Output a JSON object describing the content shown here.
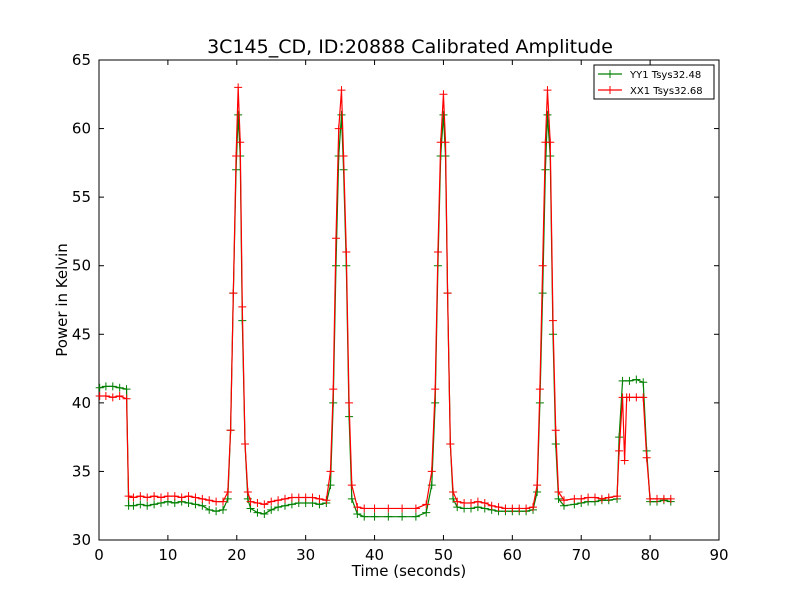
{
  "chart_data": {
    "type": "line",
    "title": "3C145_CD, ID:20888 Calibrated Amplitude",
    "xlabel": "Time (seconds)",
    "ylabel": "Power in Kelvin",
    "xlim": [
      0,
      90
    ],
    "ylim": [
      30,
      65
    ],
    "xticks": [
      0,
      10,
      20,
      30,
      40,
      50,
      60,
      70,
      80,
      90
    ],
    "yticks": [
      30,
      35,
      40,
      45,
      50,
      55,
      60,
      65
    ],
    "grid": false,
    "legend_position": "top-right",
    "series": [
      {
        "name": "YY1 Tsys32.48",
        "color": "#008000",
        "marker": "plus",
        "points": [
          [
            0.1,
            41.1
          ],
          [
            1,
            41.2
          ],
          [
            2,
            41.2
          ],
          [
            3,
            41.1
          ],
          [
            4.0,
            41.0
          ],
          [
            4.3,
            32.5
          ],
          [
            5,
            32.5
          ],
          [
            6,
            32.6
          ],
          [
            7,
            32.5
          ],
          [
            8,
            32.6
          ],
          [
            9,
            32.7
          ],
          [
            10,
            32.8
          ],
          [
            11,
            32.7
          ],
          [
            12,
            32.8
          ],
          [
            13,
            32.7
          ],
          [
            14,
            32.6
          ],
          [
            15,
            32.5
          ],
          [
            16,
            32.2
          ],
          [
            17,
            32.1
          ],
          [
            18,
            32.2
          ],
          [
            18.7,
            33.0
          ],
          [
            19.1,
            38.0
          ],
          [
            19.5,
            48.0
          ],
          [
            19.9,
            57.0
          ],
          [
            20.2,
            61.0
          ],
          [
            20.5,
            58.0
          ],
          [
            20.8,
            46.0
          ],
          [
            21.2,
            37.0
          ],
          [
            21.6,
            33.0
          ],
          [
            22,
            32.3
          ],
          [
            23,
            32.0
          ],
          [
            24,
            31.9
          ],
          [
            25,
            32.2
          ],
          [
            26,
            32.4
          ],
          [
            27,
            32.5
          ],
          [
            28,
            32.6
          ],
          [
            29,
            32.7
          ],
          [
            30,
            32.7
          ],
          [
            31,
            32.7
          ],
          [
            32,
            32.6
          ],
          [
            33,
            32.7
          ],
          [
            33.6,
            34.0
          ],
          [
            34.0,
            40.0
          ],
          [
            34.4,
            50.0
          ],
          [
            34.8,
            58.0
          ],
          [
            35.2,
            61.0
          ],
          [
            35.5,
            57.0
          ],
          [
            35.9,
            50.0
          ],
          [
            36.3,
            39.0
          ],
          [
            36.7,
            33.0
          ],
          [
            37.5,
            31.9
          ],
          [
            38.5,
            31.7
          ],
          [
            40,
            31.7
          ],
          [
            42,
            31.7
          ],
          [
            44,
            31.7
          ],
          [
            46,
            31.7
          ],
          [
            47.5,
            32.0
          ],
          [
            48.3,
            34.0
          ],
          [
            48.8,
            40.0
          ],
          [
            49.2,
            50.0
          ],
          [
            49.6,
            58.0
          ],
          [
            50.0,
            61.0
          ],
          [
            50.3,
            58.0
          ],
          [
            50.6,
            48.0
          ],
          [
            51.0,
            37.0
          ],
          [
            51.4,
            33.0
          ],
          [
            52,
            32.4
          ],
          [
            53,
            32.3
          ],
          [
            54,
            32.3
          ],
          [
            55,
            32.4
          ],
          [
            56,
            32.3
          ],
          [
            57,
            32.2
          ],
          [
            58,
            32.1
          ],
          [
            59,
            32.1
          ],
          [
            60,
            32.1
          ],
          [
            61,
            32.1
          ],
          [
            62,
            32.1
          ],
          [
            63,
            32.2
          ],
          [
            63.6,
            33.5
          ],
          [
            64.0,
            40.0
          ],
          [
            64.4,
            48.0
          ],
          [
            64.8,
            57.0
          ],
          [
            65.1,
            61.0
          ],
          [
            65.5,
            58.0
          ],
          [
            65.9,
            45.0
          ],
          [
            66.3,
            37.0
          ],
          [
            66.7,
            33.0
          ],
          [
            67.5,
            32.5
          ],
          [
            69,
            32.6
          ],
          [
            70,
            32.7
          ],
          [
            71,
            32.8
          ],
          [
            72,
            32.8
          ],
          [
            73,
            32.9
          ],
          [
            74,
            32.9
          ],
          [
            75.2,
            33.0
          ],
          [
            75.5,
            37.5
          ],
          [
            76.0,
            41.6
          ],
          [
            77,
            41.6
          ],
          [
            78,
            41.7
          ],
          [
            79,
            41.5
          ],
          [
            79.5,
            36.5
          ],
          [
            80.0,
            32.8
          ],
          [
            81,
            32.8
          ],
          [
            82,
            32.9
          ],
          [
            83,
            32.8
          ]
        ]
      },
      {
        "name": "XX1 Tsys32.68",
        "color": "#ff0000",
        "marker": "plus",
        "points": [
          [
            0.1,
            40.5
          ],
          [
            1,
            40.5
          ],
          [
            2,
            40.4
          ],
          [
            3,
            40.5
          ],
          [
            4.0,
            40.3
          ],
          [
            4.3,
            33.2
          ],
          [
            5,
            33.1
          ],
          [
            6,
            33.2
          ],
          [
            7,
            33.1
          ],
          [
            8,
            33.2
          ],
          [
            9,
            33.1
          ],
          [
            10,
            33.2
          ],
          [
            11,
            33.2
          ],
          [
            12,
            33.1
          ],
          [
            13,
            33.2
          ],
          [
            14,
            33.1
          ],
          [
            15,
            33.0
          ],
          [
            16,
            32.9
          ],
          [
            17,
            32.8
          ],
          [
            18,
            32.8
          ],
          [
            18.7,
            33.5
          ],
          [
            19.1,
            38.0
          ],
          [
            19.5,
            48.0
          ],
          [
            19.9,
            58.0
          ],
          [
            20.2,
            63.0
          ],
          [
            20.5,
            59.0
          ],
          [
            20.8,
            47.0
          ],
          [
            21.2,
            37.0
          ],
          [
            21.6,
            33.5
          ],
          [
            22,
            32.8
          ],
          [
            23,
            32.7
          ],
          [
            24,
            32.6
          ],
          [
            25,
            32.8
          ],
          [
            26,
            32.9
          ],
          [
            27,
            33.0
          ],
          [
            28,
            33.1
          ],
          [
            29,
            33.1
          ],
          [
            30,
            33.1
          ],
          [
            31,
            33.1
          ],
          [
            32,
            33.0
          ],
          [
            33,
            32.9
          ],
          [
            33.6,
            35.0
          ],
          [
            34.0,
            41.0
          ],
          [
            34.4,
            52.0
          ],
          [
            34.8,
            60.0
          ],
          [
            35.2,
            62.8
          ],
          [
            35.5,
            58.0
          ],
          [
            35.9,
            51.0
          ],
          [
            36.3,
            40.0
          ],
          [
            36.7,
            34.0
          ],
          [
            37.5,
            32.4
          ],
          [
            38.5,
            32.3
          ],
          [
            40,
            32.3
          ],
          [
            42,
            32.3
          ],
          [
            44,
            32.3
          ],
          [
            46,
            32.3
          ],
          [
            47.5,
            32.6
          ],
          [
            48.3,
            35.0
          ],
          [
            48.8,
            41.0
          ],
          [
            49.2,
            51.0
          ],
          [
            49.6,
            59.0
          ],
          [
            50.0,
            62.5
          ],
          [
            50.3,
            59.0
          ],
          [
            50.6,
            48.0
          ],
          [
            51.0,
            37.0
          ],
          [
            51.4,
            33.5
          ],
          [
            52,
            32.8
          ],
          [
            53,
            32.7
          ],
          [
            54,
            32.7
          ],
          [
            55,
            32.8
          ],
          [
            56,
            32.7
          ],
          [
            57,
            32.5
          ],
          [
            58,
            32.4
          ],
          [
            59,
            32.3
          ],
          [
            60,
            32.3
          ],
          [
            61,
            32.3
          ],
          [
            62,
            32.3
          ],
          [
            63,
            32.4
          ],
          [
            63.6,
            34.0
          ],
          [
            64.0,
            41.0
          ],
          [
            64.4,
            50.0
          ],
          [
            64.8,
            59.0
          ],
          [
            65.1,
            62.8
          ],
          [
            65.5,
            59.0
          ],
          [
            65.9,
            46.0
          ],
          [
            66.3,
            38.0
          ],
          [
            66.7,
            33.5
          ],
          [
            67.5,
            32.9
          ],
          [
            69,
            33.0
          ],
          [
            70,
            33.0
          ],
          [
            71,
            33.1
          ],
          [
            72,
            33.1
          ],
          [
            73,
            33.0
          ],
          [
            74,
            33.1
          ],
          [
            75.2,
            33.2
          ],
          [
            75.5,
            36.5
          ],
          [
            76.0,
            40.4
          ],
          [
            76.3,
            35.8
          ],
          [
            76.6,
            40.4
          ],
          [
            77,
            40.4
          ],
          [
            78,
            40.4
          ],
          [
            79,
            40.4
          ],
          [
            79.5,
            36.0
          ],
          [
            80.0,
            33.0
          ],
          [
            81,
            33.0
          ],
          [
            82,
            33.0
          ],
          [
            83,
            33.0
          ]
        ]
      }
    ]
  }
}
